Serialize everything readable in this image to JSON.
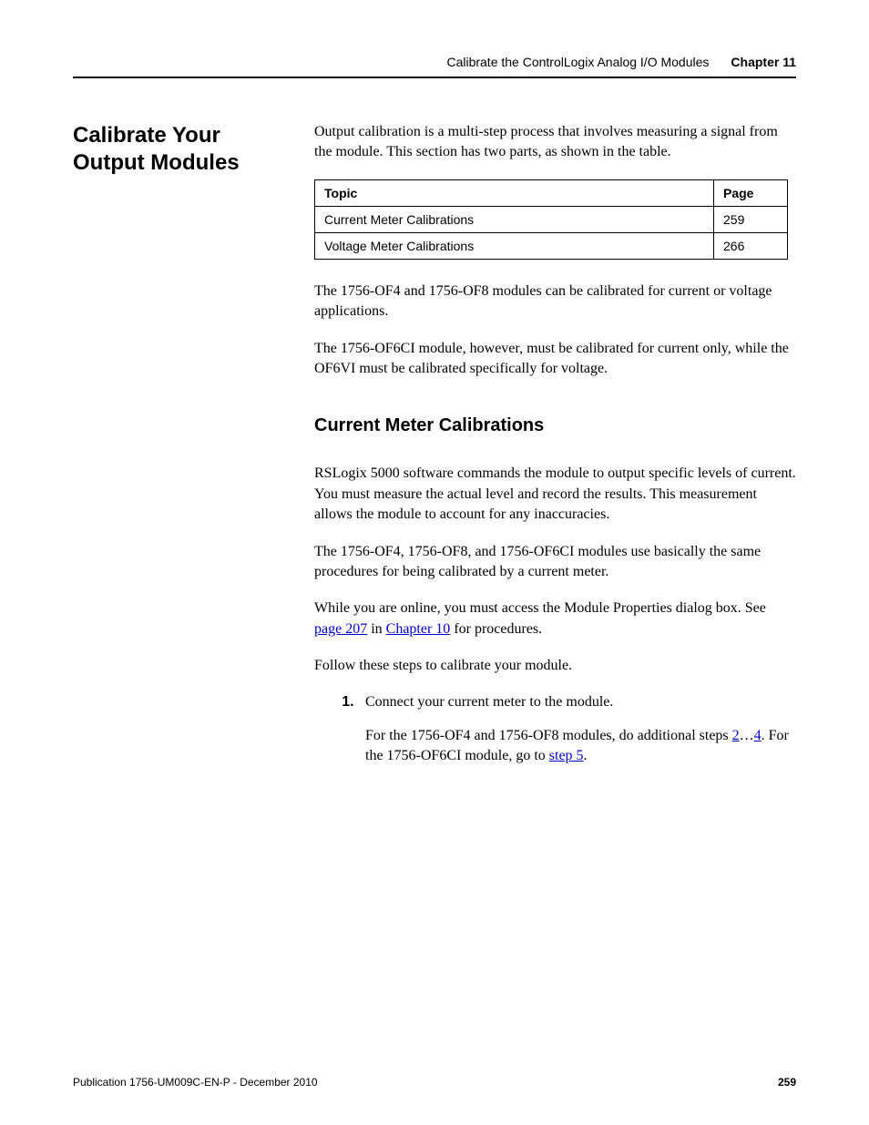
{
  "header": {
    "doc_title": "Calibrate the ControlLogix Analog I/O Modules",
    "chapter_label": "Chapter 11"
  },
  "section": {
    "heading": "Calibrate Your Output Modules",
    "intro": "Output calibration is a multi-step process that involves measuring a signal from the module. This section has two parts, as shown in the table."
  },
  "topic_table": {
    "headers": {
      "topic": "Topic",
      "page": "Page"
    },
    "rows": [
      {
        "topic": "Current Meter Calibrations",
        "page": "259"
      },
      {
        "topic": "Voltage Meter Calibrations",
        "page": "266"
      }
    ]
  },
  "para_after_table_1": "The 1756-OF4 and 1756-OF8 modules can be calibrated for current or voltage applications.",
  "para_after_table_2": "The 1756-OF6CI module, however, must be calibrated for current only, while the OF6VI must be calibrated specifically for voltage.",
  "subsection": {
    "heading": "Current Meter Calibrations",
    "p1": "RSLogix 5000 software commands the module to output specific levels of current. You must measure the actual level and record the results. This measurement allows the module to account for any inaccuracies.",
    "p2": "The 1756-OF4, 1756-OF8, and 1756-OF6CI modules use basically the same procedures for being calibrated by a current meter.",
    "p3_prefix": "While you are online, you must access the Module Properties dialog box. See ",
    "p3_link1": "page 207",
    "p3_mid": " in ",
    "p3_link2": "Chapter 10",
    "p3_suffix": " for procedures.",
    "p4": "Follow these steps to calibrate your module."
  },
  "steps": {
    "s1": "Connect your current meter to the module.",
    "s1_sub_prefix": "For the 1756-OF4 and 1756-OF8 modules, do additional steps ",
    "s1_sub_link_a": "2",
    "s1_sub_mid1": "…",
    "s1_sub_link_b": "4",
    "s1_sub_mid2": ". For the 1756-OF6CI module, go to ",
    "s1_sub_link_c": "step 5",
    "s1_sub_suffix": "."
  },
  "footer": {
    "publication": "Publication 1756-UM009C-EN-P - December 2010",
    "page_number": "259"
  }
}
